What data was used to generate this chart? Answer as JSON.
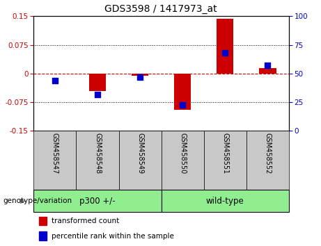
{
  "title": "GDS3598 / 1417973_at",
  "samples": [
    "GSM458547",
    "GSM458548",
    "GSM458549",
    "GSM458550",
    "GSM458551",
    "GSM458552"
  ],
  "transformed_count": [
    0.0,
    -0.045,
    -0.005,
    -0.095,
    0.143,
    0.015
  ],
  "percentile_rank": [
    44,
    32,
    47,
    23,
    68,
    57
  ],
  "ylim_left": [
    -0.15,
    0.15
  ],
  "ylim_right": [
    0,
    100
  ],
  "yticks_left": [
    -0.15,
    -0.075,
    0,
    0.075,
    0.15
  ],
  "yticks_right": [
    0,
    25,
    50,
    75,
    100
  ],
  "left_color": "#CC0000",
  "right_color": "#0000CC",
  "bar_width": 0.4,
  "dot_size": 30,
  "legend1": "transformed count",
  "legend2": "percentile rank within the sample",
  "genotype_label": "genotype/variation",
  "group1_label": "p300 +/-",
  "group2_label": "wild-type",
  "hline_color": "#CC0000",
  "grid_color": "black",
  "sample_bg_color": "#C8C8C8",
  "group_bg_color": "#90EE90",
  "plot_bg_color": "#FFFFFF"
}
